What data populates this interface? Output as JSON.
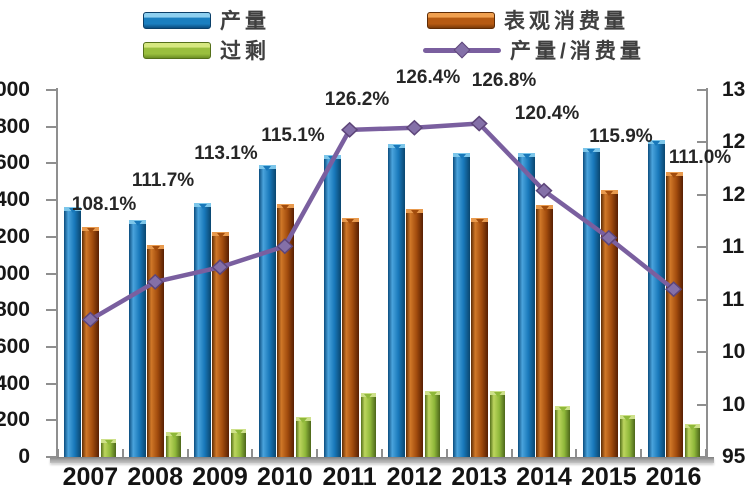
{
  "legend": {
    "items": [
      {
        "label": "产量",
        "type": "bar",
        "color": "#1a7fc0"
      },
      {
        "label": "表观消费量",
        "type": "bar",
        "color": "#a24c0d"
      },
      {
        "label": "过剩",
        "type": "bar",
        "color": "#8fb83a"
      },
      {
        "label": "产量/消费量",
        "type": "line",
        "color": "#7a5f9f"
      }
    ]
  },
  "chart_data": {
    "type": "bar",
    "subtype": "bar+line combo, dual axis",
    "categories": [
      "2007",
      "2008",
      "2009",
      "2010",
      "2011",
      "2012",
      "2013",
      "2014",
      "2015",
      "2016"
    ],
    "series": [
      {
        "name": "产量",
        "type": "bar",
        "axis": "left",
        "color": "#1a7fc0",
        "values": [
          1360,
          1290,
          1385,
          1590,
          1645,
          1705,
          1655,
          1655,
          1685,
          1725
        ]
      },
      {
        "name": "表观消费量",
        "type": "bar",
        "axis": "left",
        "color": "#a24c0d",
        "values": [
          1255,
          1155,
          1225,
          1380,
          1300,
          1350,
          1305,
          1375,
          1455,
          1555
        ]
      },
      {
        "name": "过剩",
        "type": "bar",
        "axis": "left",
        "color": "#8fb83a",
        "values": [
          100,
          135,
          155,
          220,
          350,
          360,
          360,
          280,
          230,
          180
        ]
      },
      {
        "name": "产量/消费量",
        "type": "line",
        "axis": "right",
        "color": "#7a5f9f",
        "values": [
          108.1,
          111.7,
          113.1,
          115.1,
          126.2,
          126.4,
          126.8,
          120.4,
          115.9,
          111.0
        ],
        "point_labels": [
          "108.1%",
          "111.7%",
          "113.1%",
          "115.1%",
          "126.2%",
          "126.4%",
          "126.8%",
          "120.4%",
          "115.9%",
          "111.0%"
        ]
      }
    ],
    "left_axis": {
      "min": 0,
      "max": 2000,
      "step": 200,
      "tick_labels_visible": [
        "000",
        "800",
        "600",
        "400",
        "200",
        "000",
        "800",
        "600",
        "400",
        "200",
        "0"
      ],
      "note": "labels clipped at left image edge"
    },
    "right_axis": {
      "min": 95,
      "max": 130,
      "step": 5,
      "unit": "%",
      "tick_labels_visible": [
        "13",
        "12",
        "12",
        "11",
        "11",
        "10",
        "10",
        "95"
      ],
      "note": "labels clipped at right image edge"
    },
    "grid": "off",
    "legend_position": "top"
  }
}
